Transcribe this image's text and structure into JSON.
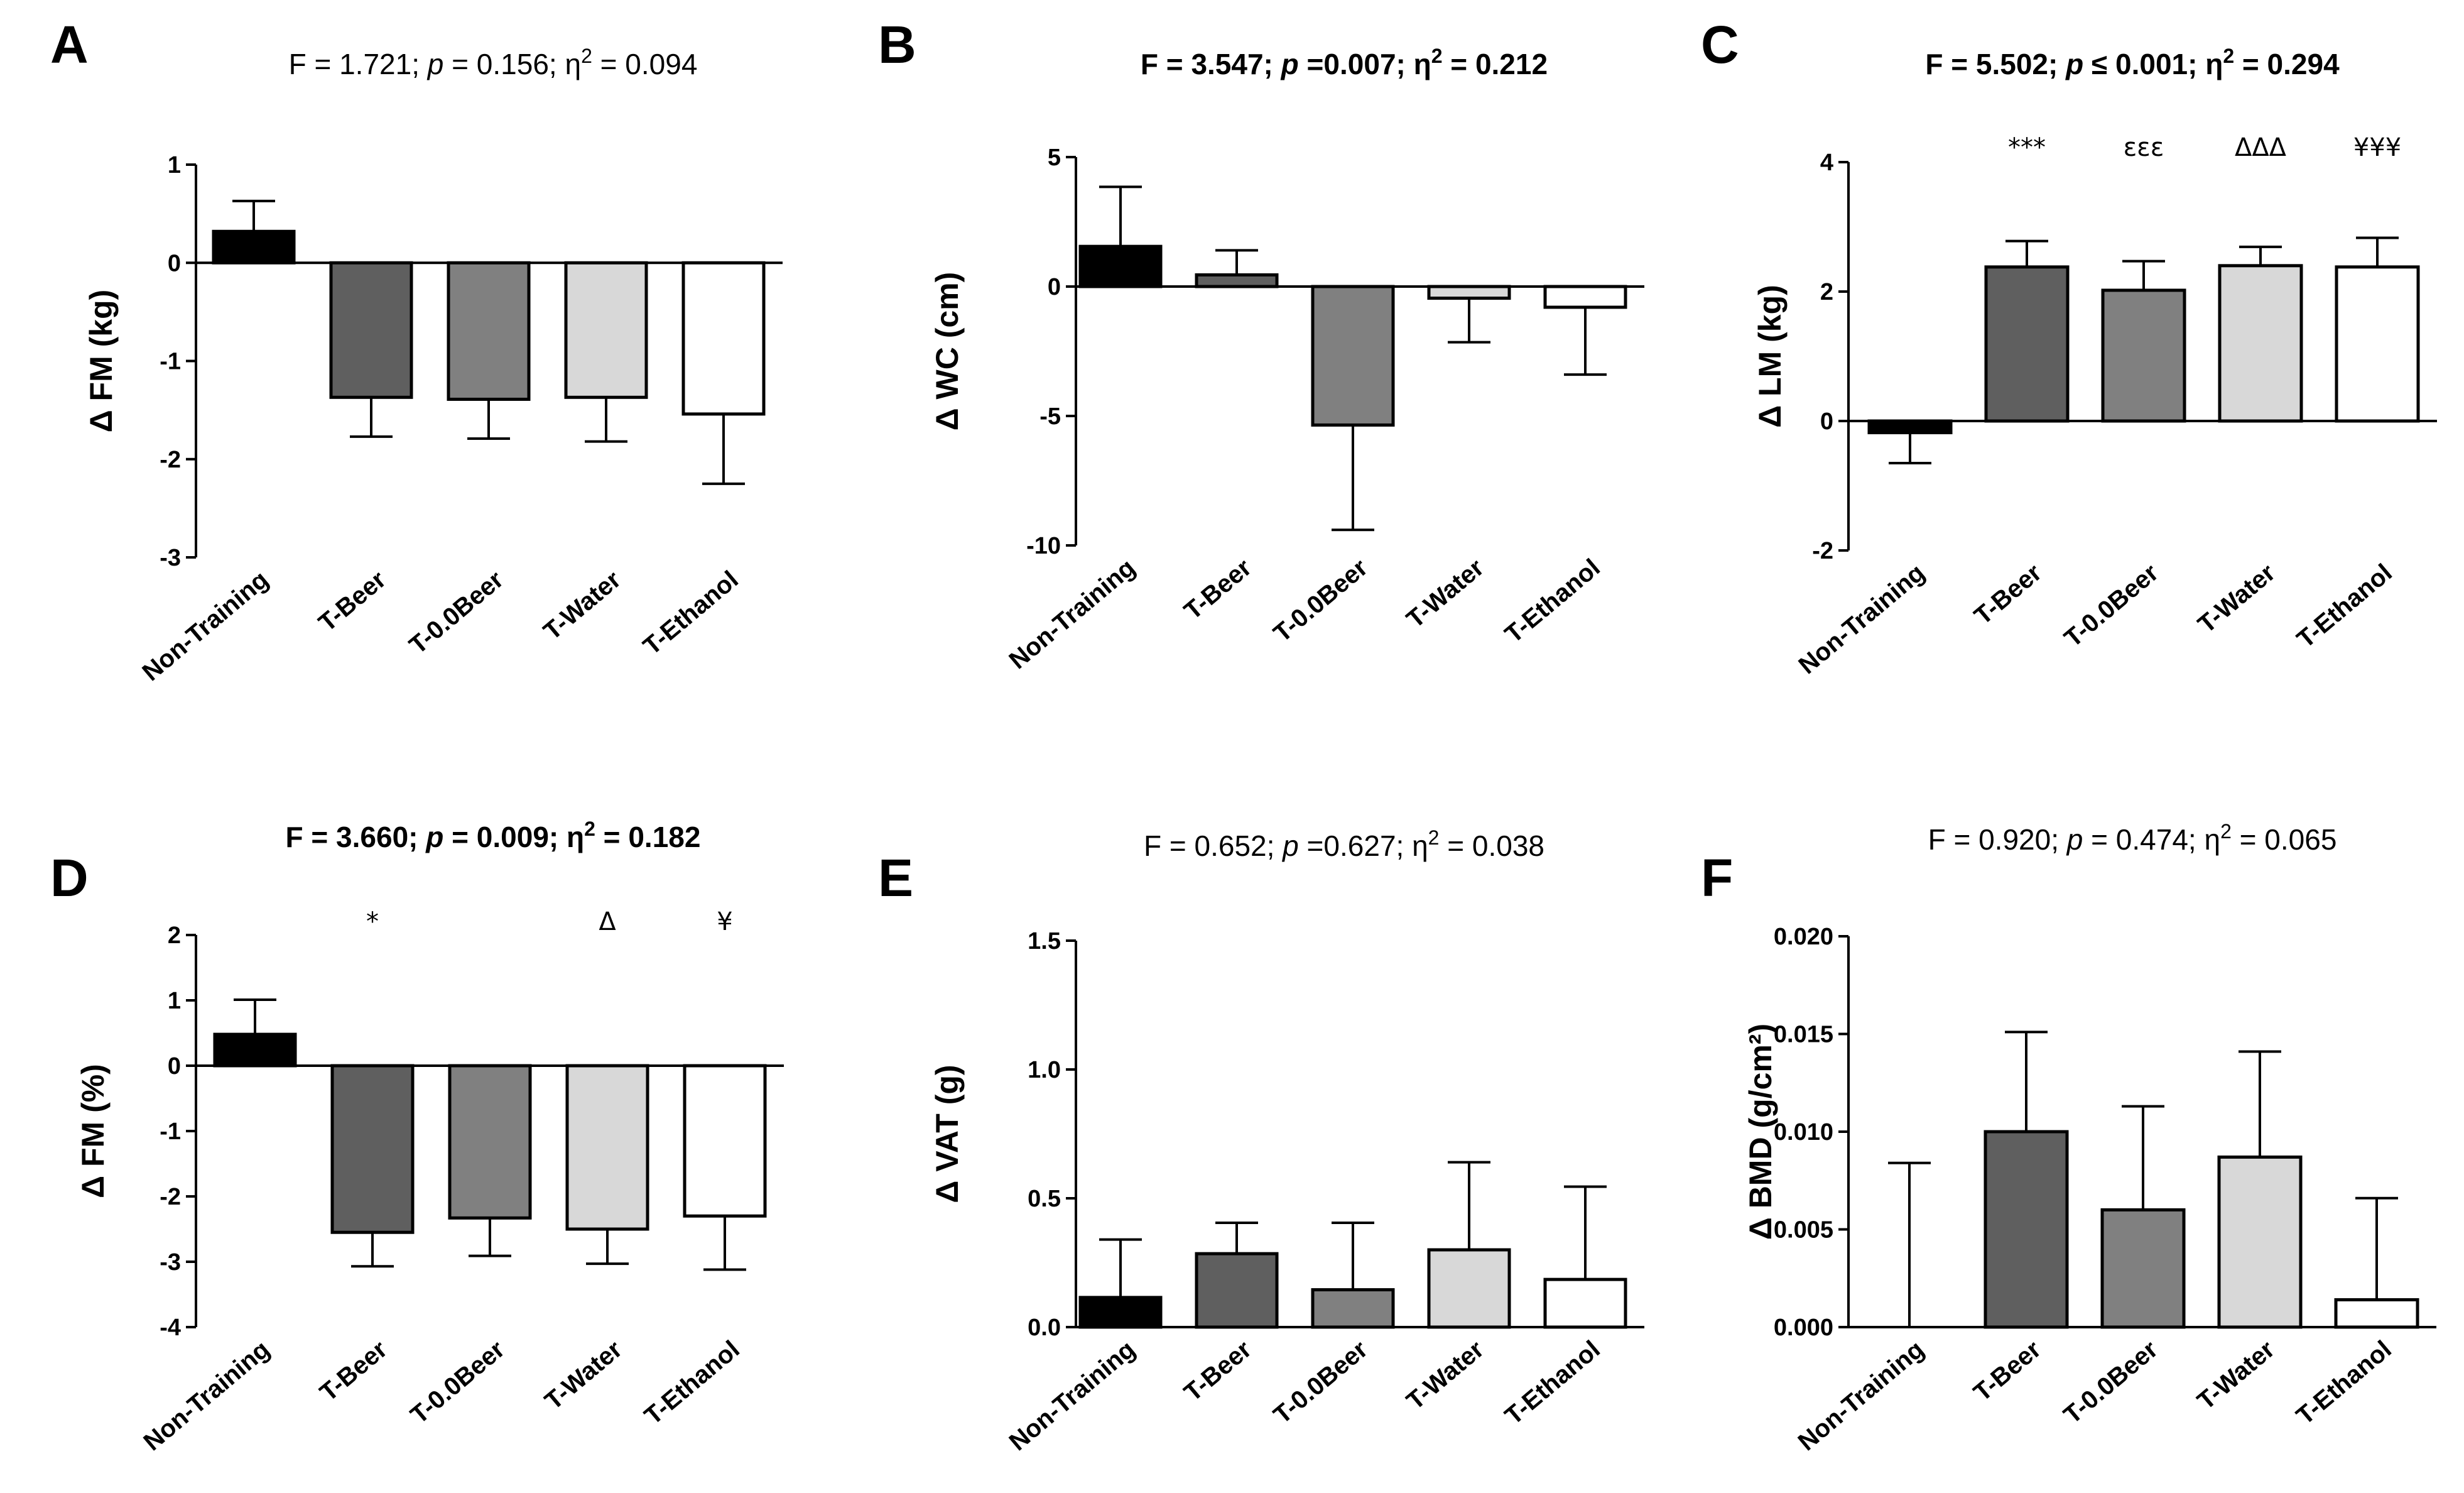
{
  "figure": {
    "background": "#ffffff",
    "bar_colors": [
      "#000000",
      "#5f5f5f",
      "#808080",
      "#d8d8d8",
      "#ffffff"
    ],
    "categories": [
      "Non-Training",
      "T-Beer",
      "T-0.0Beer",
      "T-Water",
      "T-Ethanol"
    ]
  },
  "chart_data": [
    {
      "type": "bar",
      "panel": "A",
      "title_parts": [
        "F = 1.721; ",
        "p",
        " = 0.156; η",
        "2",
        " = 0.094"
      ],
      "title_bold": false,
      "ylabel": "Δ FM (kg)",
      "ylim": [
        -3,
        1
      ],
      "yticks": [
        1,
        0,
        -1,
        -2,
        -3
      ],
      "ytick_labels": [
        "1",
        "0",
        "-1",
        "-2",
        "-3"
      ],
      "categories": [
        "Non-Training",
        "T-Beer",
        "T-0.0Beer",
        "T-Water",
        "T-Ethanol"
      ],
      "values": [
        0.32,
        -1.37,
        -1.39,
        -1.37,
        -1.54
      ],
      "errors": [
        0.31,
        0.4,
        0.4,
        0.45,
        0.71
      ],
      "significance": [
        "",
        "",
        "",
        "",
        ""
      ]
    },
    {
      "type": "bar",
      "panel": "B",
      "title_parts": [
        "F = 3.547; ",
        "p",
        " =0.007; η",
        "2",
        " = 0.212"
      ],
      "title_bold": true,
      "ylabel": "Δ WC (cm)",
      "ylim": [
        -10,
        5
      ],
      "yticks": [
        5,
        0,
        -5,
        -10
      ],
      "ytick_labels": [
        "5",
        "0",
        "-5",
        "-10"
      ],
      "categories": [
        "Non-Training",
        "T-Beer",
        "T-0.0Beer",
        "T-Water",
        "T-Ethanol"
      ],
      "values": [
        1.55,
        0.45,
        -5.35,
        -0.45,
        -0.8
      ],
      "errors": [
        2.3,
        0.95,
        4.05,
        1.7,
        2.6
      ],
      "significance": [
        "",
        "",
        "",
        "",
        ""
      ]
    },
    {
      "type": "bar",
      "panel": "C",
      "title_parts": [
        "F = 5.502; ",
        "p",
        " ≤ 0.001; η",
        "2",
        " = 0.294"
      ],
      "title_bold": true,
      "ylabel": "Δ LM  (kg)",
      "ylim": [
        -2,
        4
      ],
      "yticks": [
        4,
        2,
        0,
        -2
      ],
      "ytick_labels": [
        "4",
        "2",
        "0",
        "-2"
      ],
      "categories": [
        "Non-Training",
        "T-Beer",
        "T-0.0Beer",
        "T-Water",
        "T-Ethanol"
      ],
      "values": [
        -0.18,
        2.38,
        2.02,
        2.4,
        2.38
      ],
      "errors": [
        0.47,
        0.4,
        0.45,
        0.29,
        0.45
      ],
      "significance": [
        "",
        "***",
        "εεε",
        "ΔΔΔ",
        "¥¥¥"
      ]
    },
    {
      "type": "bar",
      "panel": "D",
      "title_parts": [
        "F = 3.660; ",
        "p",
        " = 0.009; η",
        "2",
        " = 0.182"
      ],
      "title_bold": true,
      "ylabel": "Δ FM (%)",
      "ylim": [
        -4,
        2
      ],
      "yticks": [
        2,
        1,
        0,
        -1,
        -2,
        -3,
        -4
      ],
      "ytick_labels": [
        "2",
        "1",
        "0",
        "-1",
        "-2",
        "-3",
        "-4"
      ],
      "categories": [
        "Non-Training",
        "T-Beer",
        "T-0.0Beer",
        "T-Water",
        "T-Ethanol"
      ],
      "values": [
        0.48,
        -2.55,
        -2.33,
        -2.5,
        -2.3
      ],
      "errors": [
        0.53,
        0.52,
        0.58,
        0.53,
        0.82
      ],
      "significance": [
        "",
        "*",
        "",
        "Δ",
        "¥"
      ]
    },
    {
      "type": "bar",
      "panel": "E",
      "title_parts": [
        "F = 0.652; ",
        "p",
        " =0.627; η",
        "2",
        " = 0.038"
      ],
      "title_bold": false,
      "ylabel": "Δ VAT (g)",
      "ylim": [
        0,
        1.5
      ],
      "yticks": [
        1.5,
        1.0,
        0.5,
        0.0
      ],
      "ytick_labels": [
        "1.5",
        "1.0",
        "0.5",
        "0.0"
      ],
      "categories": [
        "Non-Training",
        "T-Beer",
        "T-0.0Beer",
        "T-Water",
        "T-Ethanol"
      ],
      "values": [
        0.115,
        0.285,
        0.145,
        0.3,
        0.185
      ],
      "errors": [
        0.225,
        0.12,
        0.26,
        0.34,
        0.36
      ],
      "significance": [
        "",
        "",
        "",
        "",
        ""
      ]
    },
    {
      "type": "bar",
      "panel": "F",
      "title_parts": [
        "F = 0.920; ",
        "p",
        " = 0.474; η",
        "2",
        " = 0.065"
      ],
      "title_bold": false,
      "ylabel": "Δ BMD (g/cm²)",
      "ylim": [
        0,
        0.02
      ],
      "yticks": [
        0.02,
        0.015,
        0.01,
        0.005,
        0.0
      ],
      "ytick_labels": [
        "0.020",
        "0.015",
        "0.010",
        "0.005",
        "0.000"
      ],
      "categories": [
        "Non-Training",
        "T-Beer",
        "T-0.0Beer",
        "T-Water",
        "T-Ethanol"
      ],
      "values": [
        0.0,
        0.01,
        0.006,
        0.0087,
        0.0014
      ],
      "errors": [
        0.0084,
        0.0051,
        0.0053,
        0.0054,
        0.0052
      ],
      "significance": [
        "",
        "",
        "",
        "",
        ""
      ]
    }
  ]
}
